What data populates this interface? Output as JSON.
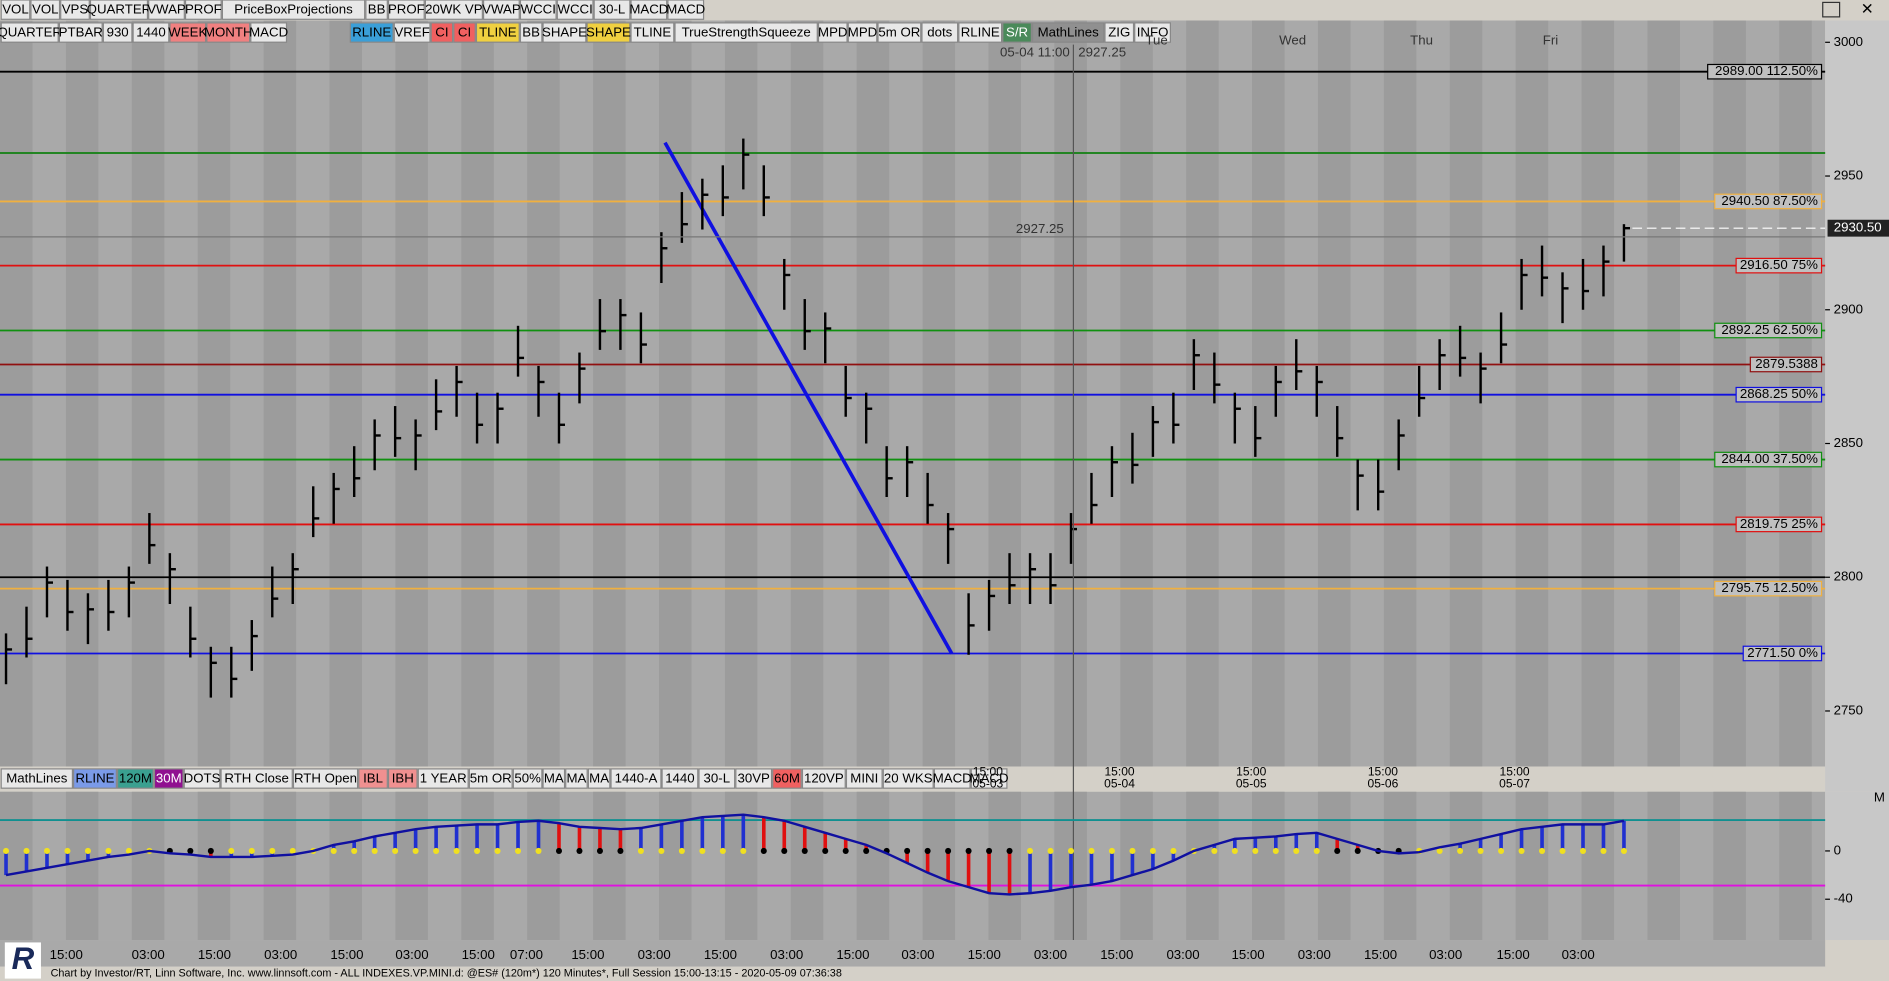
{
  "toolbar": {
    "row1": [
      {
        "text": "VOL"
      },
      {
        "text": "VOL"
      },
      {
        "text": "VPS"
      },
      {
        "text": "QUARTER"
      },
      {
        "text": "VWAP"
      },
      {
        "text": "PROF"
      },
      {
        "text": "PriceBoxProjections"
      },
      {
        "text": "BB"
      },
      {
        "text": "PROF"
      },
      {
        "text": "20WK VP"
      },
      {
        "text": "VWAP"
      },
      {
        "text": "WCCI"
      },
      {
        "text": "WCCI"
      },
      {
        "text": "30-L"
      },
      {
        "text": "MACD"
      },
      {
        "text": "MACD"
      }
    ],
    "row2": [
      {
        "text": "QUARTER"
      },
      {
        "text": "PTBAR"
      },
      {
        "text": "930"
      },
      {
        "text": "1440"
      },
      {
        "text": "WEEK",
        "bg": "#f08080"
      },
      {
        "text": "MONTH",
        "bg": "#f08080"
      },
      {
        "text": "MACD"
      },
      {
        "text": "RLINE",
        "bg": "#3a9fd8"
      },
      {
        "text": "VREF"
      },
      {
        "text": "CI",
        "bg": "#f06060"
      },
      {
        "text": "CI",
        "bg": "#f06060"
      },
      {
        "text": "TLINE",
        "bg": "#f0d040"
      },
      {
        "text": "BB"
      },
      {
        "text": "SHAPE"
      },
      {
        "text": "SHAPE",
        "bg": "#f0d040"
      },
      {
        "text": "TLINE"
      },
      {
        "text": "TrueStrengthSqueeze"
      },
      {
        "text": "MPD"
      },
      {
        "text": "MPD"
      },
      {
        "text": "5m OR"
      },
      {
        "text": "dots"
      },
      {
        "text": "RLINE"
      },
      {
        "text": "S/R",
        "bg": "#4a8a5a"
      },
      {
        "text": "MathLines",
        "bg": "#909090"
      },
      {
        "text": "ZIG"
      },
      {
        "text": "INFO"
      }
    ],
    "bottom": [
      {
        "text": "MathLines"
      },
      {
        "text": "RLINE",
        "bg": "#7a9ae8"
      },
      {
        "text": "120M",
        "bg": "#3aa090"
      },
      {
        "text": "30M",
        "bg": "#901090"
      },
      {
        "text": "DOTS"
      },
      {
        "text": "RTH Close"
      },
      {
        "text": "RTH Open"
      },
      {
        "text": "IBL",
        "bg": "#f09090"
      },
      {
        "text": "IBH",
        "bg": "#f09090"
      },
      {
        "text": "1 YEAR"
      },
      {
        "text": "5m OR"
      },
      {
        "text": "50%"
      },
      {
        "text": "MA"
      },
      {
        "text": "MA"
      },
      {
        "text": "MA"
      },
      {
        "text": "1440-A"
      },
      {
        "text": "1440"
      },
      {
        "text": "30-L"
      },
      {
        "text": "30VP"
      },
      {
        "text": "60M",
        "bg": "#f06060"
      },
      {
        "text": "120VP"
      },
      {
        "text": "MINI"
      },
      {
        "text": "20 WKS"
      },
      {
        "text": "MACD"
      },
      {
        "text": "MACD"
      }
    ]
  },
  "footer": "Chart by Investor/RT, Linn Software, Inc. www.linnsoft.com - ALL INDEXES.VP.MINI.d: @ES# (120m*) 120 Minutes*, Full Session 15:00-13:15 - 2020-05-09 07:36:38",
  "chart_data": [
    {
      "type": "ohlc",
      "ylim": [
        2729.7,
        3007.7
      ],
      "yticks": [
        2750,
        2800,
        2850,
        2900,
        2950,
        3000
      ],
      "color": "#000000",
      "high": [
        2779,
        2789,
        2804,
        2799,
        2794,
        2799,
        2804,
        2824,
        2809,
        2789,
        2774,
        2774,
        2784,
        2804,
        2809,
        2834,
        2839,
        2849,
        2859,
        2864,
        2859,
        2874,
        2879,
        2869,
        2869,
        2894,
        2879,
        2869,
        2884,
        2904,
        2904,
        2899,
        2929,
        2944,
        2949,
        2954,
        2964,
        2954,
        2919,
        2904,
        2899,
        2879,
        2869,
        2849,
        2849,
        2839,
        2824,
        2794,
        2799,
        2809,
        2809,
        2809,
        2824,
        2839,
        2849,
        2854,
        2864,
        2869,
        2889,
        2884,
        2869,
        2864,
        2879,
        2889,
        2879,
        2864,
        2844,
        2844,
        2859,
        2879,
        2889,
        2894,
        2884,
        2899,
        2919,
        2924,
        2914,
        2919,
        2924,
        2932
      ],
      "low": [
        2760,
        2770,
        2785,
        2780,
        2775,
        2780,
        2785,
        2805,
        2790,
        2770,
        2755,
        2755,
        2765,
        2785,
        2790,
        2815,
        2820,
        2830,
        2840,
        2845,
        2840,
        2855,
        2860,
        2850,
        2850,
        2875,
        2860,
        2850,
        2865,
        2885,
        2885,
        2880,
        2910,
        2925,
        2930,
        2935,
        2945,
        2935,
        2900,
        2885,
        2880,
        2860,
        2850,
        2830,
        2830,
        2820,
        2805,
        2771,
        2780,
        2790,
        2790,
        2790,
        2805,
        2820,
        2830,
        2835,
        2845,
        2850,
        2870,
        2865,
        2850,
        2845,
        2860,
        2870,
        2860,
        2845,
        2825,
        2825,
        2840,
        2860,
        2870,
        2875,
        2865,
        2880,
        2900,
        2905,
        2895,
        2900,
        2905,
        2918
      ],
      "close": [
        2773,
        2777,
        2798,
        2787,
        2788,
        2787,
        2798,
        2812,
        2803,
        2777,
        2768,
        2762,
        2778,
        2792,
        2803,
        2822,
        2833,
        2837,
        2853,
        2852,
        2853,
        2862,
        2873,
        2857,
        2863,
        2882,
        2873,
        2857,
        2878,
        2892,
        2898,
        2887,
        2923,
        2932,
        2943,
        2942,
        2958,
        2942,
        2913,
        2892,
        2893,
        2867,
        2863,
        2837,
        2843,
        2827,
        2818,
        2782,
        2793,
        2797,
        2803,
        2797,
        2818,
        2827,
        2843,
        2842,
        2858,
        2857,
        2883,
        2872,
        2863,
        2852,
        2873,
        2877,
        2873,
        2852,
        2838,
        2832,
        2853,
        2867,
        2883,
        2882,
        2878,
        2887,
        2913,
        2912,
        2908,
        2907,
        2918,
        2930.5
      ],
      "levels": [
        {
          "value": 2989,
          "label": "2989.00 112.50%",
          "color": "#000000"
        },
        {
          "value": 2940.5,
          "label": "2940.50 87.50%",
          "color": "#f0b040"
        },
        {
          "value": 2916.5,
          "label": "2916.50 75%",
          "color": "#e01010"
        },
        {
          "value": 2892.25,
          "label": "2892.25 62.50%",
          "color": "#109010"
        },
        {
          "value": 2879.5388,
          "label": "2879.5388",
          "color": "#901010"
        },
        {
          "value": 2868.25,
          "label": "2868.25 50%",
          "color": "#1010e0"
        },
        {
          "value": 2844,
          "label": "2844.00 37.50%",
          "color": "#109010"
        },
        {
          "value": 2819.75,
          "label": "2819.75 25%",
          "color": "#e01010"
        },
        {
          "value": 2795.75,
          "label": "2795.75 12.50%",
          "color": "#f0b040"
        },
        {
          "value": 2771.5,
          "label": "2771.50 0%",
          "color": "#1010e0"
        }
      ],
      "lines": [
        {
          "value": 2958.6,
          "color": "#108010"
        },
        {
          "value": 2800,
          "color": "#000000"
        }
      ],
      "trendline": {
        "start": 2962.5,
        "end": 2771.5,
        "color": "#1010e0"
      },
      "last_price": {
        "value": 2930.5,
        "label": "2930.50"
      },
      "price_marker": {
        "value": 2927.25,
        "label": "2927.25"
      },
      "cursor": {
        "time": "05-04 11:00",
        "price": "2927.25"
      },
      "days": [
        "Tue",
        "Wed",
        "Thu",
        "Fri"
      ],
      "dates": [
        {
          "time": "15:00",
          "date": "05-03"
        },
        {
          "time": "15:00",
          "date": "05-04"
        },
        {
          "time": "15:00",
          "date": "05-05"
        },
        {
          "time": "15:00",
          "date": "05-06"
        },
        {
          "time": "15:00",
          "date": "05-07"
        }
      ]
    },
    {
      "type": "macd",
      "ylim": [
        -73.8,
        49
      ],
      "yticks": [
        0,
        -40
      ],
      "panel_label": "M",
      "upper": 25.6,
      "lower": -28.7,
      "values": [
        -20,
        -17,
        -14,
        -11,
        -8,
        -5,
        -3,
        0,
        -2,
        -3,
        -5,
        -5,
        -5,
        -4,
        -3,
        0,
        5,
        8,
        12,
        15,
        18,
        20,
        21,
        22,
        22,
        24,
        25,
        23,
        20,
        19,
        18,
        19,
        22,
        25,
        28,
        29,
        30,
        28,
        25,
        20,
        15,
        10,
        5,
        -2,
        -10,
        -18,
        -25,
        -30,
        -35,
        -36,
        -35,
        -33,
        -30,
        -28,
        -25,
        -20,
        -15,
        -8,
        0,
        5,
        10,
        11,
        12,
        14,
        15,
        10,
        5,
        0,
        -2,
        -1,
        3,
        6,
        10,
        14,
        18,
        20,
        22,
        22,
        22,
        25
      ],
      "times": [
        "15:00",
        "03:00",
        "15:00",
        "03:00",
        "15:00",
        "03:00",
        "15:00",
        "07:00",
        "15:00",
        "03:00",
        "15:00",
        "03:00",
        "15:00",
        "03:00",
        "15:00",
        "03:00",
        "15:00",
        "03:00",
        "15:00",
        "03:00",
        "15:00",
        "03:00",
        "15:00",
        "03:00"
      ]
    }
  ]
}
